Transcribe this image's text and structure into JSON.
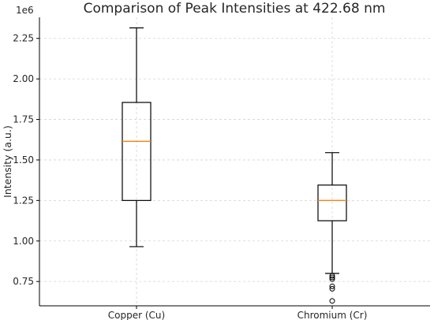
{
  "chart_data": {
    "type": "box",
    "title": "Comparison of Peak Intensities at 422.68 nm",
    "xlabel": "",
    "ylabel": "Intensity (a.u.)",
    "y_scale_label": "1e6",
    "ylim": [
      0.6,
      2.38
    ],
    "y_ticks": [
      0.75,
      1.0,
      1.25,
      1.5,
      1.75,
      2.0,
      2.25
    ],
    "y_tick_labels": [
      "0.75",
      "1.00",
      "1.25",
      "1.50",
      "1.75",
      "2.00",
      "2.25"
    ],
    "grid": true,
    "categories": [
      "Copper (Cu)",
      "Chromium (Cr)"
    ],
    "boxes": [
      {
        "label": "Copper (Cu)",
        "whisker_low": 0.965,
        "q1": 1.25,
        "median": 1.615,
        "q3": 1.855,
        "whisker_high": 2.315,
        "outliers": []
      },
      {
        "label": "Chromium (Cr)",
        "whisker_low": 0.8,
        "q1": 1.125,
        "median": 1.25,
        "q3": 1.345,
        "whisker_high": 1.545,
        "outliers": [
          0.785,
          0.775,
          0.765,
          0.72,
          0.705,
          0.63
        ]
      }
    ],
    "colors": {
      "box": "#000000",
      "median": "#ff7f0e",
      "grid": "#d3d3d3"
    }
  }
}
